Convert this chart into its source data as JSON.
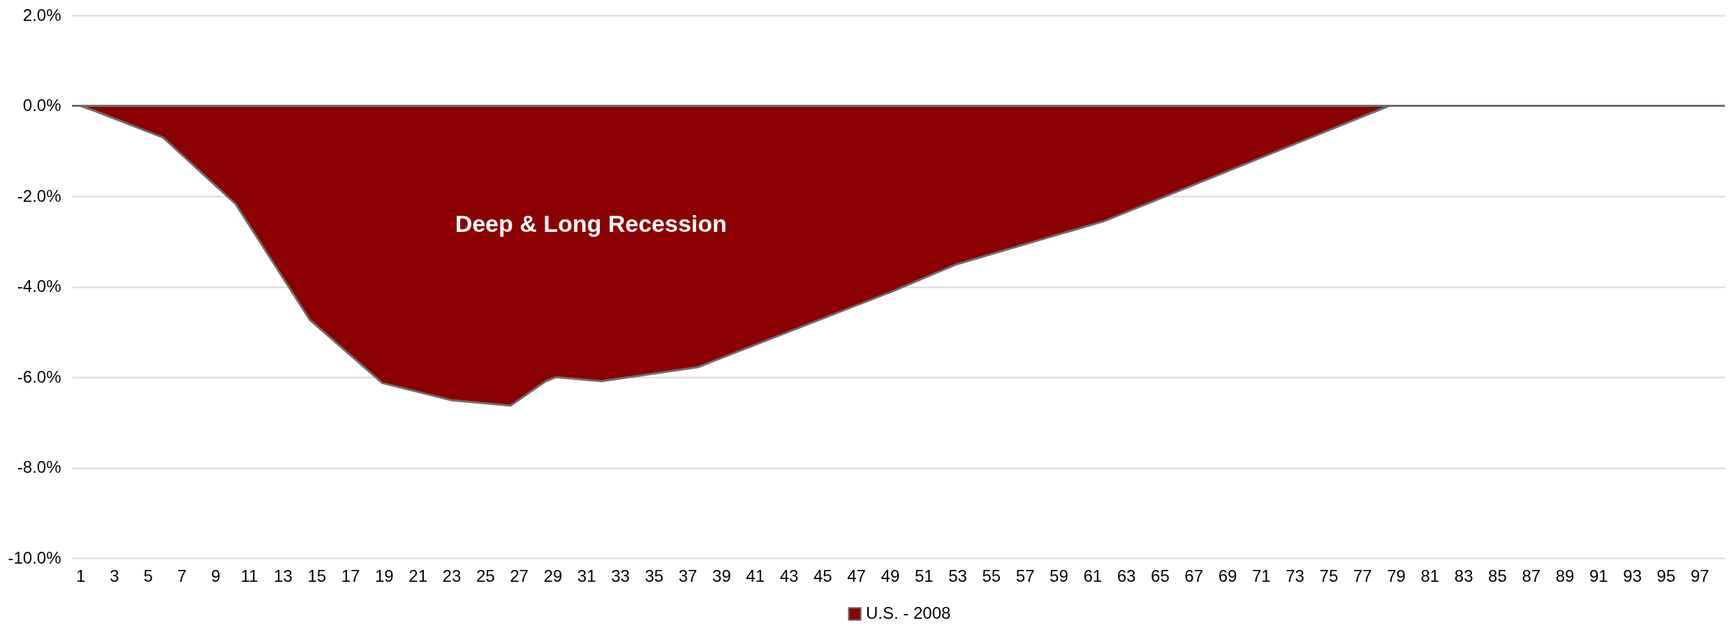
{
  "chart_data": {
    "type": "area",
    "x": [
      1,
      1.9,
      5.9,
      10.2,
      14.6,
      18.9,
      23,
      26.5,
      28.6,
      29.2,
      31.9,
      37.6,
      49.1,
      52.9,
      61.7,
      78.6
    ],
    "series": [
      {
        "name": "U.S. - 2008",
        "color": "#8b0000",
        "values": [
          0,
          -0.12,
          -0.7,
          -2.17,
          -4.73,
          -6.13,
          -6.51,
          -6.63,
          -6.09,
          -6.0,
          -6.09,
          -5.78,
          -4.11,
          -3.51,
          -2.55,
          0
        ]
      }
    ],
    "xlim": [
      0.5,
      98.5
    ],
    "xticks": [
      1,
      3,
      5,
      7,
      9,
      11,
      13,
      15,
      17,
      19,
      21,
      23,
      25,
      27,
      29,
      31,
      33,
      35,
      37,
      39,
      41,
      43,
      45,
      47,
      49,
      51,
      53,
      55,
      57,
      59,
      61,
      63,
      65,
      67,
      69,
      71,
      73,
      75,
      77,
      79,
      81,
      83,
      85,
      87,
      89,
      91,
      93,
      95,
      97
    ],
    "ylim": [
      -10,
      2
    ],
    "yticks": [
      {
        "value": 2,
        "label": "2.0%"
      },
      {
        "value": 0,
        "label": "0.0%"
      },
      {
        "value": -2,
        "label": "-2.0%"
      },
      {
        "value": -4,
        "label": "-4.0%"
      },
      {
        "value": -6,
        "label": "-6.0%"
      },
      {
        "value": -8,
        "label": "-8.0%"
      },
      {
        "value": -10,
        "label": "-10.0%"
      }
    ],
    "grid": "y",
    "legend": "bottom",
    "annotations": [
      "Deep & Long Recession"
    ]
  }
}
